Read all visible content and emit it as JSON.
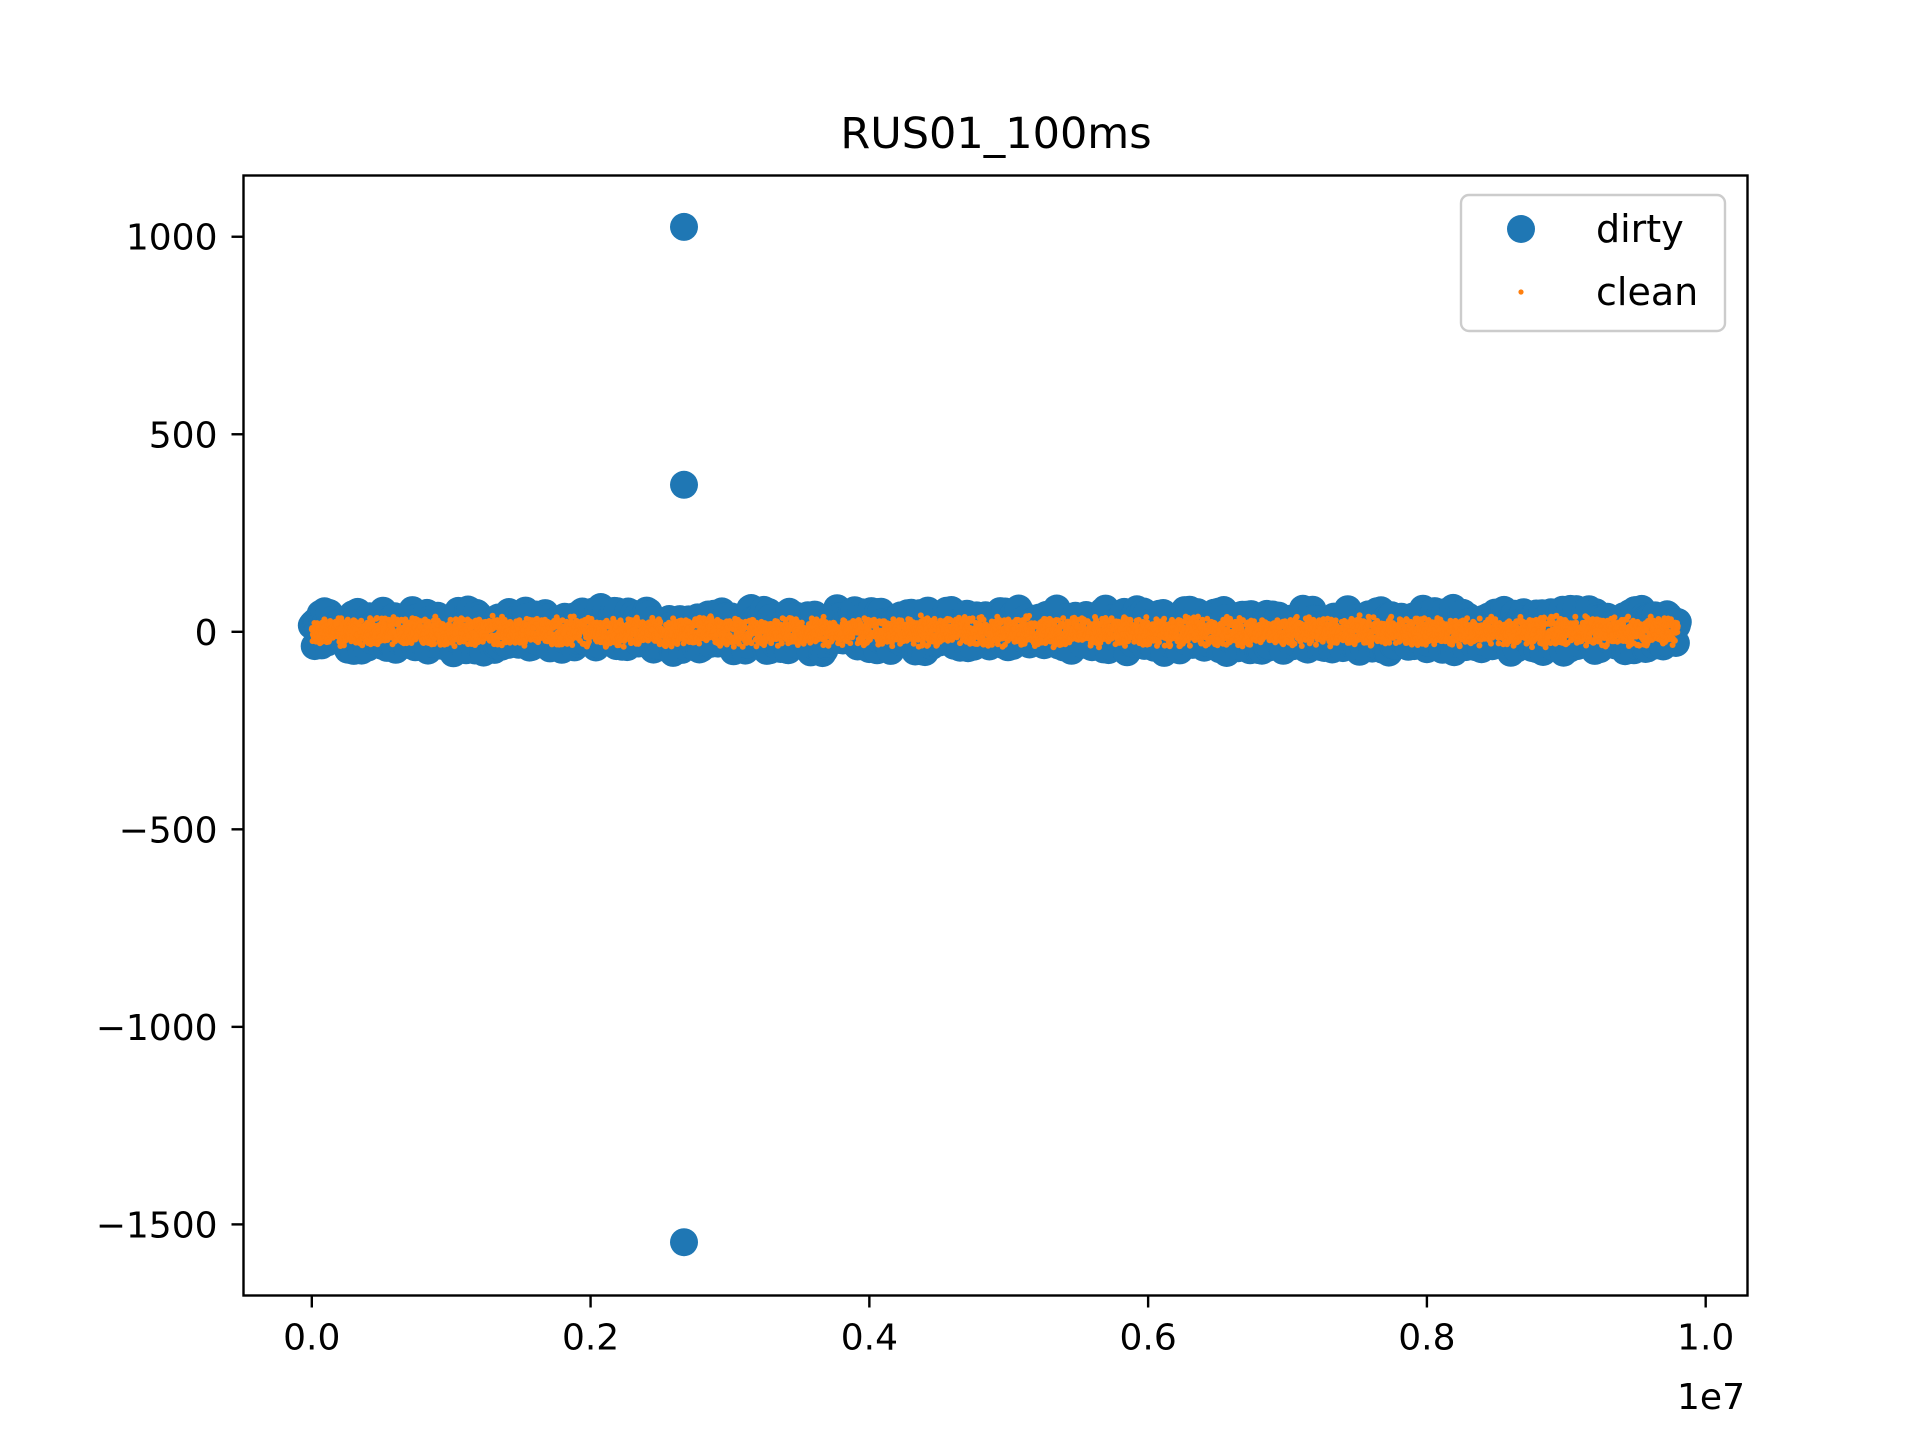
{
  "chart_data": {
    "type": "scatter",
    "title": "RUS01_100ms",
    "xlabel": "",
    "ylabel": "",
    "x_offset_text": "1e7",
    "xlim": [
      -0.049,
      1.03
    ],
    "ylim": [
      -1680,
      1155
    ],
    "x_ticks": [
      0.0,
      0.2,
      0.4,
      0.6,
      0.8,
      1.0
    ],
    "x_tick_labels": [
      "0.0",
      "0.2",
      "0.4",
      "0.6",
      "0.8",
      "1.0"
    ],
    "y_ticks": [
      1000,
      500,
      0,
      -500,
      -1000,
      -1500
    ],
    "y_tick_labels": [
      "1000",
      "500",
      "0",
      "−500",
      "−1000",
      "−1500"
    ],
    "grid": false,
    "legend_position": "top-right",
    "series": [
      {
        "name": "dirty",
        "marker": "large-circle",
        "color": "#1f77b4",
        "band": {
          "x_start": 0.0,
          "x_end": 0.98,
          "y_min": -60,
          "y_max": 65
        },
        "outliers": [
          {
            "x": 0.267,
            "y": 1025
          },
          {
            "x": 0.267,
            "y": 372
          },
          {
            "x": 0.267,
            "y": -1545
          }
        ]
      },
      {
        "name": "clean",
        "marker": "small-dot",
        "color": "#ff7f0e",
        "band": {
          "x_start": 0.0,
          "x_end": 0.98,
          "y_min": -40,
          "y_max": 42
        }
      }
    ]
  }
}
